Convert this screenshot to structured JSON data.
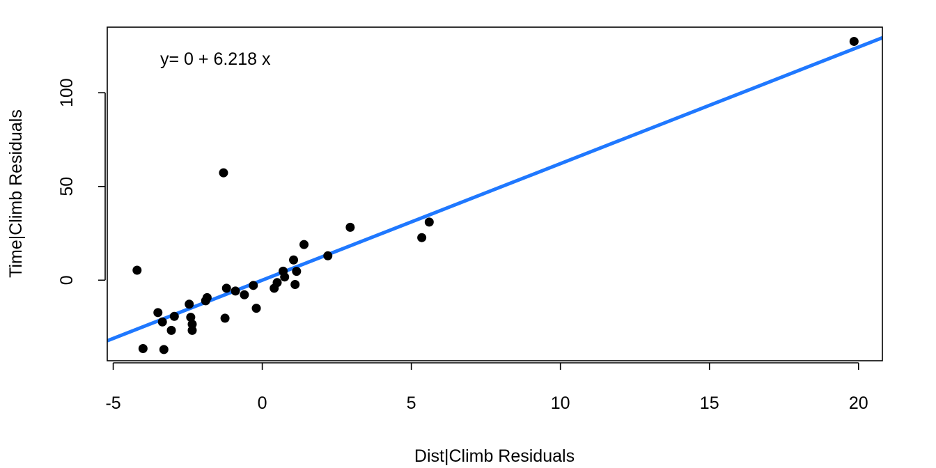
{
  "chart_data": {
    "type": "scatter",
    "title": "",
    "xlabel": "Dist|Climb Residuals",
    "ylabel": "Time|Climb Residuals",
    "xlim": [
      -5.2,
      20.8
    ],
    "ylim": [
      -43,
      135
    ],
    "x_ticks": [
      -5,
      0,
      5,
      10,
      15,
      20
    ],
    "y_ticks": [
      0,
      50,
      100
    ],
    "grid": false,
    "legend": "none",
    "annotation": "y= 0 + 6.218 x",
    "fit_line": {
      "intercept": 0,
      "slope": 6.218,
      "color": "#1f78ff"
    },
    "point_color": "#000000",
    "points": [
      {
        "x": 19.85,
        "y": 127.4
      },
      {
        "x": -1.3,
        "y": 57.3
      },
      {
        "x": -4.2,
        "y": 5.3
      },
      {
        "x": -4.0,
        "y": -36.5
      },
      {
        "x": -3.3,
        "y": -37.0
      },
      {
        "x": -3.5,
        "y": -17.3
      },
      {
        "x": -3.35,
        "y": -22.3
      },
      {
        "x": -3.05,
        "y": -26.8
      },
      {
        "x": -2.95,
        "y": -19.3
      },
      {
        "x": -2.45,
        "y": -12.8
      },
      {
        "x": -2.4,
        "y": -19.8
      },
      {
        "x": -2.35,
        "y": -23.5
      },
      {
        "x": -2.35,
        "y": -26.8
      },
      {
        "x": -1.9,
        "y": -11.0
      },
      {
        "x": -1.85,
        "y": -9.3
      },
      {
        "x": -1.25,
        "y": -20.3
      },
      {
        "x": -1.2,
        "y": -4.3
      },
      {
        "x": -0.9,
        "y": -5.8
      },
      {
        "x": -0.6,
        "y": -7.8
      },
      {
        "x": -0.3,
        "y": -2.8
      },
      {
        "x": -0.2,
        "y": -15.0
      },
      {
        "x": 0.4,
        "y": -4.3
      },
      {
        "x": 0.5,
        "y": -1.3
      },
      {
        "x": 0.7,
        "y": 4.8
      },
      {
        "x": 0.75,
        "y": 1.7
      },
      {
        "x": 1.05,
        "y": 10.8
      },
      {
        "x": 1.1,
        "y": -2.3
      },
      {
        "x": 1.15,
        "y": 4.7
      },
      {
        "x": 1.4,
        "y": 19.0
      },
      {
        "x": 2.2,
        "y": 13.0
      },
      {
        "x": 2.95,
        "y": 28.2
      },
      {
        "x": 5.35,
        "y": 22.7
      },
      {
        "x": 5.6,
        "y": 31.0
      }
    ]
  }
}
